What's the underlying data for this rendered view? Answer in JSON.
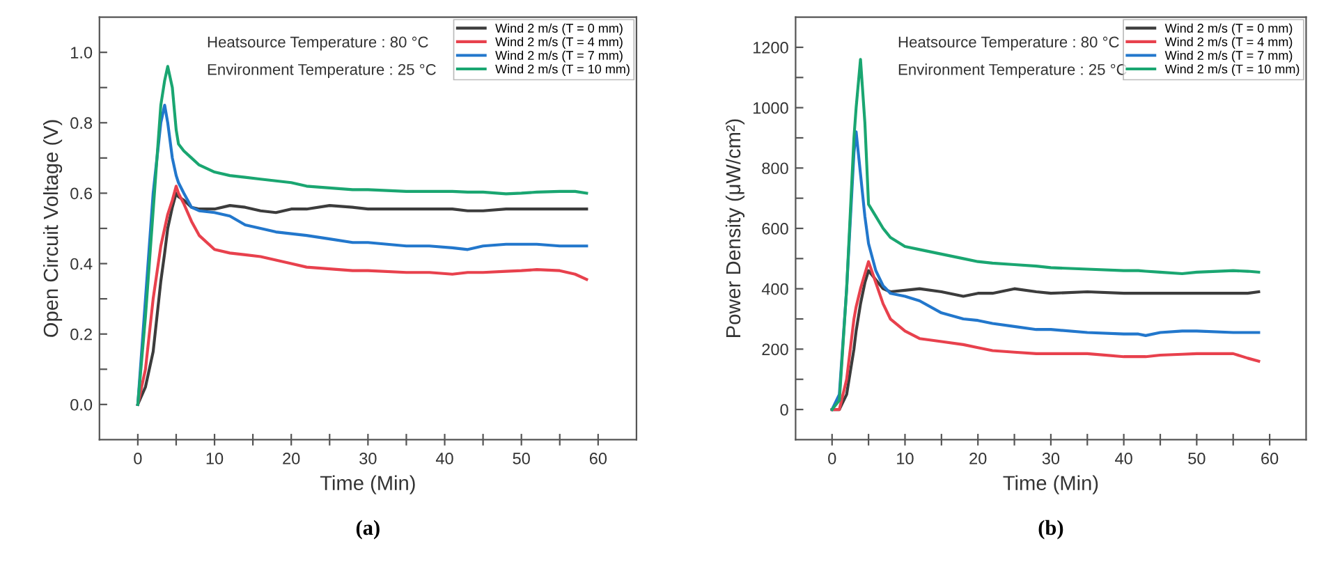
{
  "chart_data": [
    {
      "type": "line",
      "xlabel": "Time (Min)",
      "ylabel": "Open Circuit Voltage (V)",
      "xlim": [
        -5,
        65
      ],
      "ylim": [
        -0.1,
        1.1
      ],
      "xticks": [
        0,
        {
          "value": 5,
          "label": null
        },
        10,
        {
          "value": 15,
          "label": null
        },
        20,
        {
          "value": 25,
          "label": null
        },
        30,
        {
          "value": 35,
          "label": null
        },
        40,
        {
          "value": 45,
          "label": null
        },
        50,
        {
          "value": 55,
          "label": null
        },
        60
      ],
      "yticks": [
        {
          "value": 0,
          "label": "0.0"
        },
        {
          "value": 0.1,
          "label": null
        },
        0.2,
        {
          "value": 0.3,
          "label": null
        },
        0.4,
        {
          "value": 0.5,
          "label": null
        },
        0.6,
        {
          "value": 0.7,
          "label": null
        },
        0.8,
        {
          "value": 0.9,
          "label": null
        },
        {
          "value": 1,
          "label": "1.0"
        }
      ],
      "grid": false,
      "legend": "top right",
      "marker": "none",
      "line_style": "solid",
      "annotations": [
        "Heatsource Temperature : 80 °C",
        "Environment Temperature : 25 °C",
        "(a)"
      ],
      "x": [
        0,
        1,
        2,
        3,
        3.5,
        3.9,
        4.5,
        5,
        5.3,
        6,
        7,
        8,
        10,
        12,
        14,
        16,
        18,
        20,
        22,
        25,
        28,
        30,
        35,
        38,
        41,
        43,
        45,
        48,
        50,
        52,
        55,
        57,
        58.5
      ],
      "series": [
        {
          "name": "Wind 2 m/s (T = 0 mm)",
          "color": "#3c3c3c",
          "values": [
            0,
            0.05,
            0.15,
            0.35,
            0.43,
            0.5,
            0.56,
            0.6,
            0.59,
            0.58,
            0.56,
            0.555,
            0.555,
            0.565,
            0.56,
            0.55,
            0.545,
            0.555,
            0.555,
            0.565,
            0.56,
            0.555,
            0.555,
            0.555,
            0.555,
            0.55,
            0.55,
            0.555,
            0.555,
            0.555,
            0.555,
            0.555,
            0.555
          ]
        },
        {
          "name": "Wind 2 m/s (T = 4 mm)",
          "color": "#e8414d",
          "values": [
            0,
            0.1,
            0.3,
            0.45,
            0.5,
            0.54,
            0.58,
            0.62,
            0.6,
            0.57,
            0.52,
            0.48,
            0.44,
            0.43,
            0.425,
            0.42,
            0.41,
            0.4,
            0.39,
            0.385,
            0.38,
            0.38,
            0.375,
            0.375,
            0.37,
            0.375,
            0.375,
            0.378,
            0.38,
            0.383,
            0.38,
            0.37,
            0.355
          ]
        },
        {
          "name": "Wind 2 m/s (T = 7 mm)",
          "color": "#2277cc",
          "values": [
            0,
            0.3,
            0.6,
            0.8,
            0.85,
            0.8,
            0.7,
            0.65,
            0.63,
            0.6,
            0.56,
            0.55,
            0.545,
            0.535,
            0.51,
            0.5,
            0.49,
            0.485,
            0.48,
            0.47,
            0.46,
            0.46,
            0.45,
            0.45,
            0.445,
            0.44,
            0.45,
            0.455,
            0.455,
            0.455,
            0.45,
            0.45,
            0.45
          ]
        },
        {
          "name": "Wind 2 m/s (T = 10 mm)",
          "color": "#1aa671",
          "values": [
            0,
            0.25,
            0.55,
            0.85,
            0.92,
            0.96,
            0.9,
            0.78,
            0.74,
            0.72,
            0.7,
            0.68,
            0.66,
            0.65,
            0.645,
            0.64,
            0.635,
            0.63,
            0.62,
            0.615,
            0.61,
            0.61,
            0.605,
            0.605,
            0.605,
            0.603,
            0.603,
            0.598,
            0.6,
            0.603,
            0.605,
            0.605,
            0.6
          ]
        }
      ]
    },
    {
      "type": "line",
      "xlabel": "Time (Min)",
      "ylabel": "Power Density (μW/cm²)",
      "xlim": [
        -5,
        65
      ],
      "ylim": [
        -100,
        1300
      ],
      "xticks": [
        0,
        {
          "value": 5,
          "label": null
        },
        10,
        {
          "value": 15,
          "label": null
        },
        20,
        {
          "value": 25,
          "label": null
        },
        30,
        {
          "value": 35,
          "label": null
        },
        40,
        {
          "value": 45,
          "label": null
        },
        50,
        {
          "value": 55,
          "label": null
        },
        60
      ],
      "yticks": [
        0,
        {
          "value": 100,
          "label": null
        },
        200,
        {
          "value": 300,
          "label": null
        },
        400,
        {
          "value": 500,
          "label": null
        },
        600,
        {
          "value": 700,
          "label": null
        },
        800,
        {
          "value": 900,
          "label": null
        },
        1000,
        {
          "value": 1100,
          "label": null
        },
        1200
      ],
      "grid": false,
      "legend": "top right",
      "marker": "none",
      "line_style": "solid",
      "annotations": [
        "Heatsource Temperature : 80 °C",
        "Environment Temperature : 25 °C",
        "(b)"
      ],
      "x": [
        0,
        1,
        2,
        3,
        3.3,
        3.9,
        4.5,
        5,
        6,
        7,
        8,
        10,
        12,
        15,
        18,
        20,
        22,
        25,
        28,
        30,
        35,
        40,
        42,
        43,
        45,
        48,
        50,
        55,
        57,
        58.5
      ],
      "series": [
        {
          "name": "Wind 2 m/s (T = 0 mm)",
          "color": "#3c3c3c",
          "values": [
            0,
            0,
            50,
            200,
            260,
            350,
            420,
            460,
            430,
            400,
            390,
            395,
            400,
            390,
            375,
            385,
            385,
            400,
            390,
            385,
            390,
            385,
            385,
            385,
            385,
            385,
            385,
            385,
            385,
            390
          ]
        },
        {
          "name": "Wind 2 m/s (T = 4 mm)",
          "color": "#e8414d",
          "values": [
            0,
            0,
            100,
            300,
            340,
            400,
            450,
            490,
            420,
            350,
            300,
            260,
            235,
            225,
            215,
            205,
            195,
            190,
            185,
            185,
            185,
            175,
            175,
            175,
            180,
            183,
            185,
            185,
            170,
            160
          ]
        },
        {
          "name": "Wind 2 m/s (T = 7 mm)",
          "color": "#2277cc",
          "values": [
            0,
            50,
            400,
            850,
            920,
            780,
            640,
            550,
            460,
            410,
            385,
            375,
            360,
            320,
            300,
            295,
            285,
            275,
            265,
            265,
            255,
            250,
            250,
            245,
            255,
            260,
            260,
            255,
            255,
            255
          ]
        },
        {
          "name": "Wind 2 m/s (T = 10 mm)",
          "color": "#1aa671",
          "values": [
            0,
            30,
            400,
            900,
            1000,
            1160,
            950,
            680,
            640,
            600,
            570,
            540,
            530,
            515,
            500,
            490,
            485,
            480,
            475,
            470,
            465,
            460,
            460,
            458,
            455,
            450,
            455,
            460,
            458,
            455
          ]
        }
      ]
    }
  ]
}
